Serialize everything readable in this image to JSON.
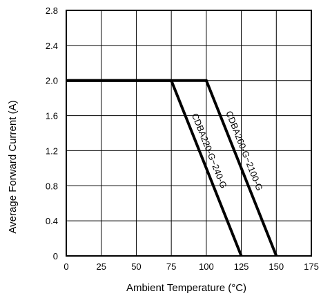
{
  "chart_data": {
    "type": "line",
    "xlabel": "Ambient Temperature (°C)",
    "ylabel": "Average Forward Current (A)",
    "xlim": [
      0,
      175
    ],
    "ylim": [
      0,
      2.8
    ],
    "xticks": [
      "0",
      "25",
      "50",
      "75",
      "100",
      "125",
      "150",
      "175"
    ],
    "yticks": [
      "0",
      "0.4",
      "0.8",
      "1.2",
      "1.6",
      "2.0",
      "2.4",
      "2.8"
    ],
    "grid": true,
    "series": [
      {
        "name": "CDBA220-G~240-G",
        "x": [
          0,
          75,
          125
        ],
        "y": [
          2.0,
          2.0,
          0
        ]
      },
      {
        "name": "CDBA260-G~2100-G",
        "x": [
          0,
          100,
          150
        ],
        "y": [
          2.0,
          2.0,
          0
        ]
      }
    ]
  }
}
